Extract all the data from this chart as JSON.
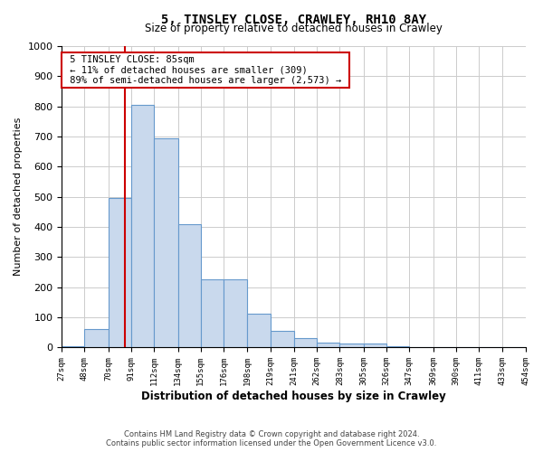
{
  "title": "5, TINSLEY CLOSE, CRAWLEY, RH10 8AY",
  "subtitle": "Size of property relative to detached houses in Crawley",
  "xlabel": "Distribution of detached houses by size in Crawley",
  "ylabel": "Number of detached properties",
  "bar_edges": [
    27,
    48,
    70,
    91,
    112,
    134,
    155,
    176,
    198,
    219,
    241,
    262,
    283,
    305,
    326,
    347,
    369,
    390,
    411,
    433,
    454
  ],
  "bar_heights": [
    5,
    60,
    495,
    805,
    695,
    410,
    225,
    225,
    113,
    55,
    30,
    15,
    12,
    12,
    5,
    2,
    2,
    0,
    0,
    2
  ],
  "bar_color": "#c9d9ed",
  "bar_edge_color": "#6699cc",
  "property_line_x": 85,
  "annotation_title": "5 TINSLEY CLOSE: 85sqm",
  "annotation_line1": "← 11% of detached houses are smaller (309)",
  "annotation_line2": "89% of semi-detached houses are larger (2,573) →",
  "annotation_box_color": "#ffffff",
  "annotation_box_edge": "#cc0000",
  "vline_color": "#cc0000",
  "ylim": [
    0,
    1000
  ],
  "tick_labels": [
    "27sqm",
    "48sqm",
    "70sqm",
    "91sqm",
    "112sqm",
    "134sqm",
    "155sqm",
    "176sqm",
    "198sqm",
    "219sqm",
    "241sqm",
    "262sqm",
    "283sqm",
    "305sqm",
    "326sqm",
    "347sqm",
    "369sqm",
    "390sqm",
    "411sqm",
    "433sqm",
    "454sqm"
  ],
  "footer1": "Contains HM Land Registry data © Crown copyright and database right 2024.",
  "footer2": "Contains public sector information licensed under the Open Government Licence v3.0.",
  "background_color": "#ffffff",
  "grid_color": "#cccccc"
}
